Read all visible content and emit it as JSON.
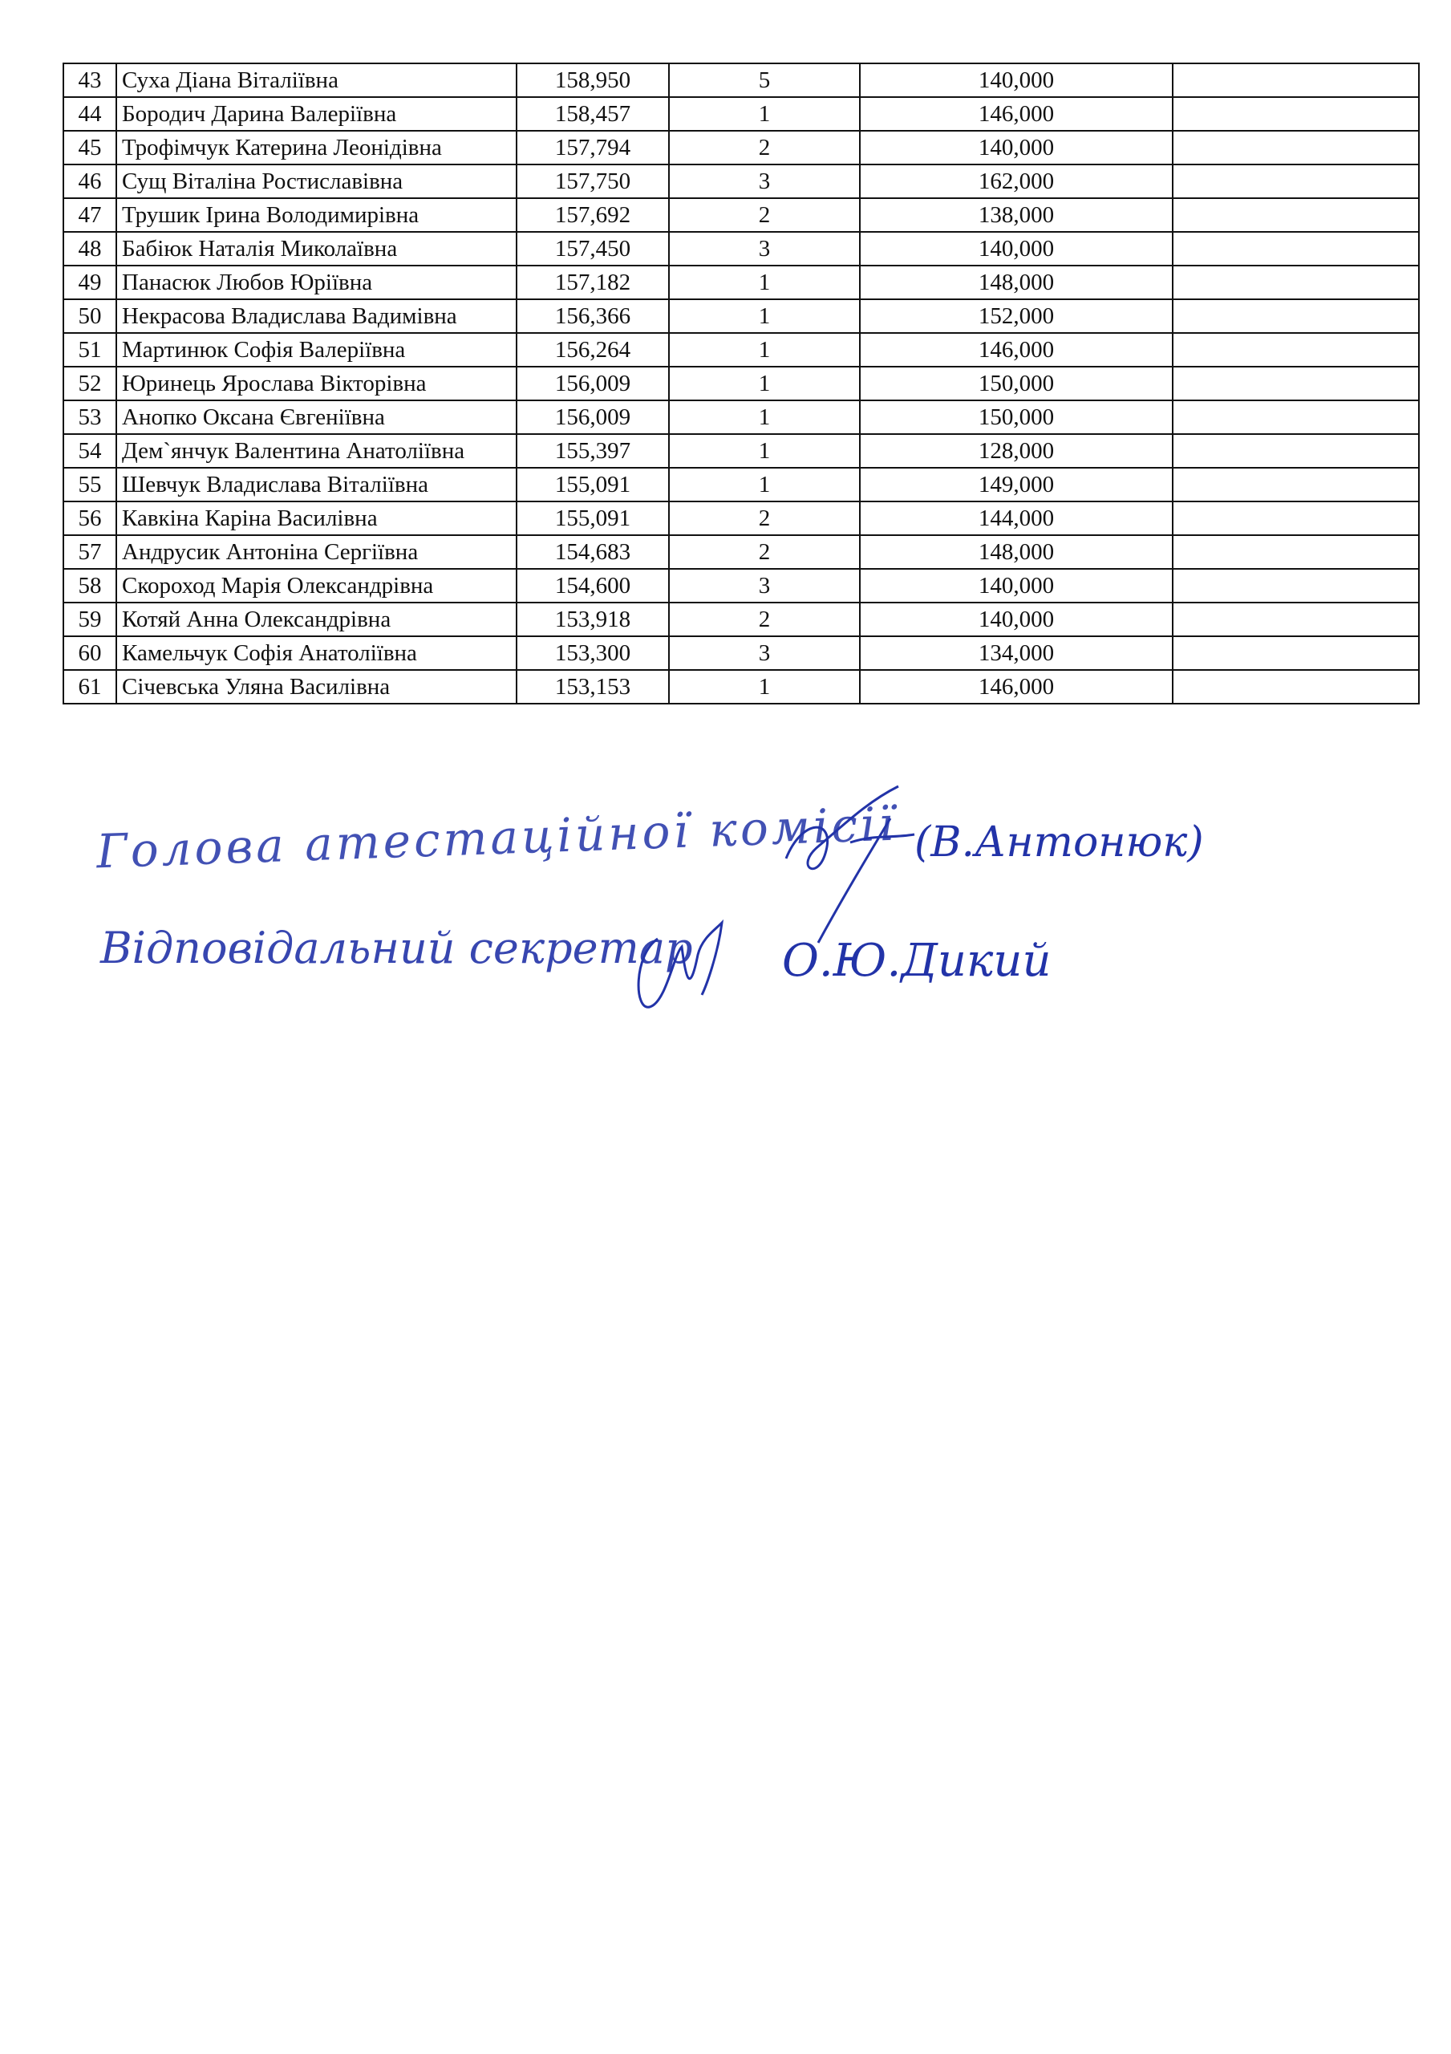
{
  "table": {
    "rows": [
      {
        "no": "43",
        "name": "Суха Діана Віталіївна",
        "score": "158,950",
        "col4": "5",
        "col5": "140,000",
        "col6": ""
      },
      {
        "no": "44",
        "name": "Бородич Дарина Валеріївна",
        "score": "158,457",
        "col4": "1",
        "col5": "146,000",
        "col6": ""
      },
      {
        "no": "45",
        "name": "Трофімчук Катерина Леонідівна",
        "score": "157,794",
        "col4": "2",
        "col5": "140,000",
        "col6": ""
      },
      {
        "no": "46",
        "name": "Сущ Віталіна Ростиславівна",
        "score": "157,750",
        "col4": "3",
        "col5": "162,000",
        "col6": ""
      },
      {
        "no": "47",
        "name": "Трушик Ірина Володимирівна",
        "score": "157,692",
        "col4": "2",
        "col5": "138,000",
        "col6": ""
      },
      {
        "no": "48",
        "name": "Бабіюк Наталія Миколаївна",
        "score": "157,450",
        "col4": "3",
        "col5": "140,000",
        "col6": ""
      },
      {
        "no": "49",
        "name": "Панасюк Любов Юріївна",
        "score": "157,182",
        "col4": "1",
        "col5": "148,000",
        "col6": ""
      },
      {
        "no": "50",
        "name": "Некрасова Владислава Вадимівна",
        "score": "156,366",
        "col4": "1",
        "col5": "152,000",
        "col6": ""
      },
      {
        "no": "51",
        "name": "Мартинюк Софія Валеріївна",
        "score": "156,264",
        "col4": "1",
        "col5": "146,000",
        "col6": ""
      },
      {
        "no": "52",
        "name": "Юринець Ярослава Вікторівна",
        "score": "156,009",
        "col4": "1",
        "col5": "150,000",
        "col6": ""
      },
      {
        "no": "53",
        "name": "Анопко Оксана Євгеніївна",
        "score": "156,009",
        "col4": "1",
        "col5": "150,000",
        "col6": ""
      },
      {
        "no": "54",
        "name": "Дем`янчук Валентина Анатоліївна",
        "score": "155,397",
        "col4": "1",
        "col5": "128,000",
        "col6": ""
      },
      {
        "no": "55",
        "name": "Шевчук Владислава Віталіївна",
        "score": "155,091",
        "col4": "1",
        "col5": "149,000",
        "col6": ""
      },
      {
        "no": "56",
        "name": "Кавкіна Каріна Василівна",
        "score": "155,091",
        "col4": "2",
        "col5": "144,000",
        "col6": ""
      },
      {
        "no": "57",
        "name": "Андрусик Антоніна Сергіївна",
        "score": "154,683",
        "col4": "2",
        "col5": "148,000",
        "col6": ""
      },
      {
        "no": "58",
        "name": "Скороход Марія Олександрівна",
        "score": "154,600",
        "col4": "3",
        "col5": "140,000",
        "col6": ""
      },
      {
        "no": "59",
        "name": "Котяй Анна Олександрівна",
        "score": "153,918",
        "col4": "2",
        "col5": "140,000",
        "col6": ""
      },
      {
        "no": "60",
        "name": "Камельчук Софія Анатоліївна",
        "score": "153,300",
        "col4": "3",
        "col5": "134,000",
        "col6": ""
      },
      {
        "no": "61",
        "name": "Січевська Уляна Василівна",
        "score": "153,153",
        "col4": "1",
        "col5": "146,000",
        "col6": ""
      }
    ]
  },
  "signatures": {
    "line1_label": "Голова атестаційної комісії",
    "line1_name": "(В.Антонюк)",
    "line2_label": "Відповідальний секретар",
    "line2_name": "О.Ю.Дикий",
    "ink_color": "#2233a8"
  }
}
